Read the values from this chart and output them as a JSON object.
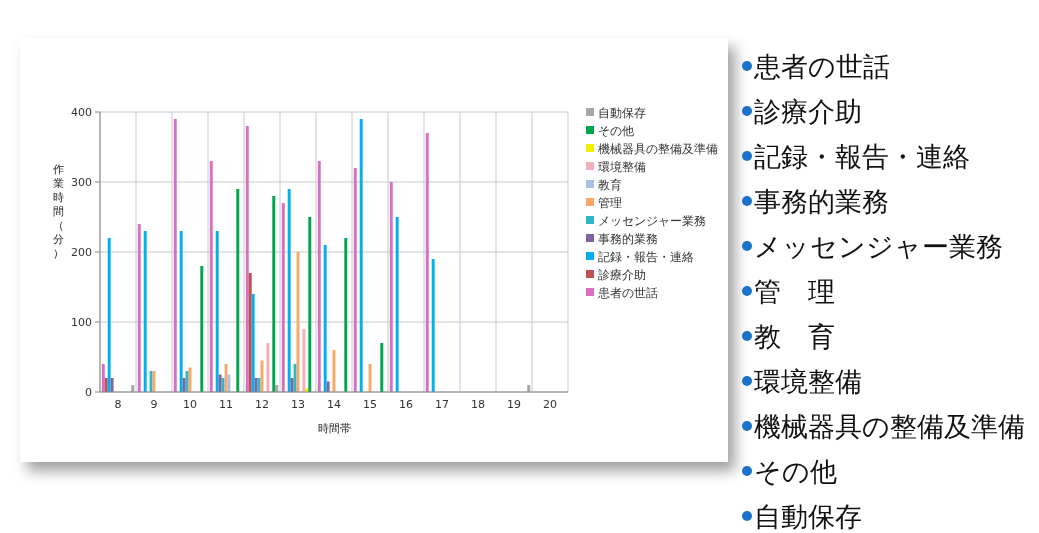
{
  "chart_data": {
    "type": "bar",
    "xlabel": "時間帯",
    "ylabel": "作業時間（分）",
    "categories": [
      "8",
      "9",
      "10",
      "11",
      "12",
      "13",
      "14",
      "15",
      "16",
      "17",
      "18",
      "19",
      "20"
    ],
    "series": [
      {
        "name": "患者の世話",
        "color": "#d670c3",
        "values": [
          40,
          240,
          390,
          330,
          380,
          270,
          330,
          320,
          300,
          370,
          null,
          null,
          null
        ]
      },
      {
        "name": "診療介助",
        "color": "#c0504d",
        "values": [
          20,
          null,
          null,
          null,
          170,
          null,
          null,
          null,
          null,
          null,
          null,
          null,
          null
        ]
      },
      {
        "name": "記録・報告・連絡",
        "color": "#00b0f0",
        "values": [
          220,
          230,
          230,
          230,
          140,
          290,
          210,
          390,
          250,
          190,
          null,
          null,
          null
        ]
      },
      {
        "name": "事務的業務",
        "color": "#8064a2",
        "values": [
          20,
          null,
          20,
          25,
          20,
          20,
          15,
          null,
          null,
          null,
          null,
          null,
          null
        ]
      },
      {
        "name": "メッセンジャー業務",
        "color": "#31b6c6",
        "values": [
          null,
          30,
          30,
          20,
          20,
          40,
          null,
          null,
          null,
          null,
          null,
          null,
          null
        ]
      },
      {
        "name": "管理",
        "color": "#f9a86a",
        "values": [
          null,
          30,
          35,
          40,
          45,
          200,
          60,
          40,
          null,
          null,
          null,
          null,
          null
        ]
      },
      {
        "name": "教育",
        "color": "#a9c1e2",
        "values": [
          null,
          null,
          null,
          25,
          null,
          null,
          null,
          null,
          null,
          null,
          null,
          null,
          null
        ]
      },
      {
        "name": "環境整備",
        "color": "#f2b1ba",
        "values": [
          null,
          null,
          null,
          null,
          70,
          90,
          null,
          null,
          null,
          null,
          null,
          null,
          null
        ]
      },
      {
        "name": "機械器具の整備及準備",
        "color": "#f2f000",
        "values": [
          null,
          null,
          null,
          null,
          null,
          5,
          null,
          null,
          null,
          null,
          null,
          null,
          null
        ]
      },
      {
        "name": "その他",
        "color": "#00a550",
        "values": [
          null,
          null,
          180,
          290,
          280,
          250,
          220,
          70,
          null,
          null,
          null,
          null,
          null
        ]
      },
      {
        "name": "自動保存",
        "color": "#a6a6a6",
        "values": [
          10,
          null,
          null,
          null,
          10,
          null,
          null,
          null,
          null,
          null,
          null,
          10,
          null
        ]
      }
    ],
    "ylim": [
      0,
      400
    ],
    "yticks": [
      0,
      100,
      200,
      300,
      400
    ],
    "grid": true,
    "legend": "right",
    "annotations": [
      "患者の世話",
      "診療介助",
      "記録・報告・連絡",
      "事務的業務",
      "メッセンジャー業務",
      "管　理",
      "教　育",
      "環境整備",
      "機械器具の整備及準備",
      "その他",
      "自動保存"
    ]
  }
}
